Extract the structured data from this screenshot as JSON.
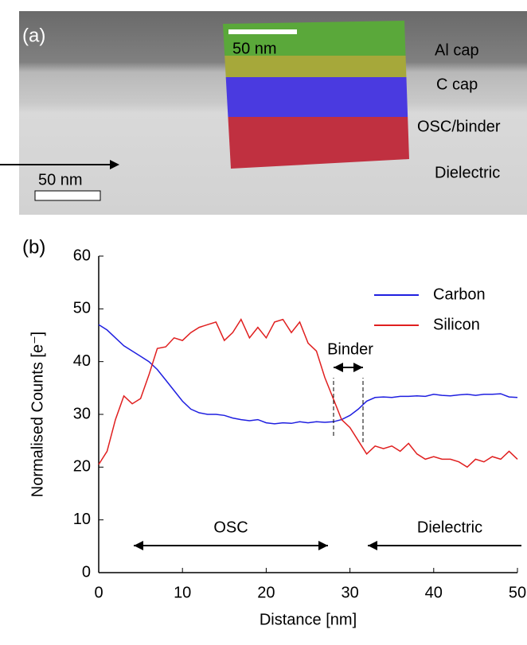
{
  "panel_a": {
    "label": "(a)",
    "map_scale": "50 nm",
    "image_scale": "50 nm",
    "layers": [
      "Al cap",
      "C cap",
      "OSC/binder",
      "Dielectric"
    ]
  },
  "chart_data": {
    "type": "line",
    "panel_label": "(b)",
    "x_label": "Distance [nm]",
    "y_label": "Normalised Counts [e⁻]",
    "x": [
      0,
      1,
      2,
      3,
      4,
      5,
      6,
      7,
      8,
      9,
      10,
      11,
      12,
      13,
      14,
      15,
      16,
      17,
      18,
      19,
      20,
      21,
      22,
      23,
      24,
      25,
      26,
      27,
      28,
      29,
      30,
      31,
      32,
      33,
      34,
      35,
      36,
      37,
      38,
      39,
      40,
      41,
      42,
      43,
      44,
      45,
      46,
      47,
      48,
      49,
      50
    ],
    "series": [
      {
        "name": "Carbon",
        "color": "#1f1fe0",
        "values": [
          47,
          46,
          44.5,
          43,
          42,
          41,
          40,
          38.5,
          36.5,
          34.5,
          32.5,
          31,
          30.3,
          30,
          30,
          29.8,
          29.3,
          29,
          28.8,
          29,
          28.4,
          28.2,
          28.4,
          28.3,
          28.6,
          28.4,
          28.6,
          28.5,
          28.6,
          29,
          29.8,
          31,
          32.5,
          33.2,
          33.3,
          33.2,
          33.4,
          33.4,
          33.5,
          33.4,
          33.8,
          33.6,
          33.5,
          33.7,
          33.8,
          33.6,
          33.8,
          33.8,
          33.9,
          33.3,
          33.2
        ]
      },
      {
        "name": "Silicon",
        "color": "#e01f1f",
        "values": [
          20.5,
          23,
          29,
          33.5,
          32,
          33,
          37.5,
          42.5,
          42.8,
          44.5,
          44,
          45.5,
          46.5,
          47,
          47.5,
          44,
          45.5,
          48,
          44.5,
          46.5,
          44.5,
          47.5,
          48,
          45.5,
          47.5,
          43.5,
          42,
          37,
          33,
          29,
          27.5,
          25,
          22.5,
          24,
          23.5,
          24,
          23,
          24.5,
          22.5,
          21.5,
          22,
          21.5,
          21.5,
          21,
          20,
          21.5,
          21,
          22,
          21.5,
          23,
          21.5
        ]
      }
    ],
    "annotations": [
      "OSC",
      "Dielectric",
      "Binder"
    ],
    "xlim": [
      0,
      50
    ],
    "xticks": [
      0,
      10,
      20,
      30,
      40,
      50
    ],
    "ylim": [
      0,
      60
    ],
    "yticks": [
      0,
      10,
      20,
      30,
      40,
      50,
      60
    ],
    "legend": "upper right",
    "grid": false
  }
}
